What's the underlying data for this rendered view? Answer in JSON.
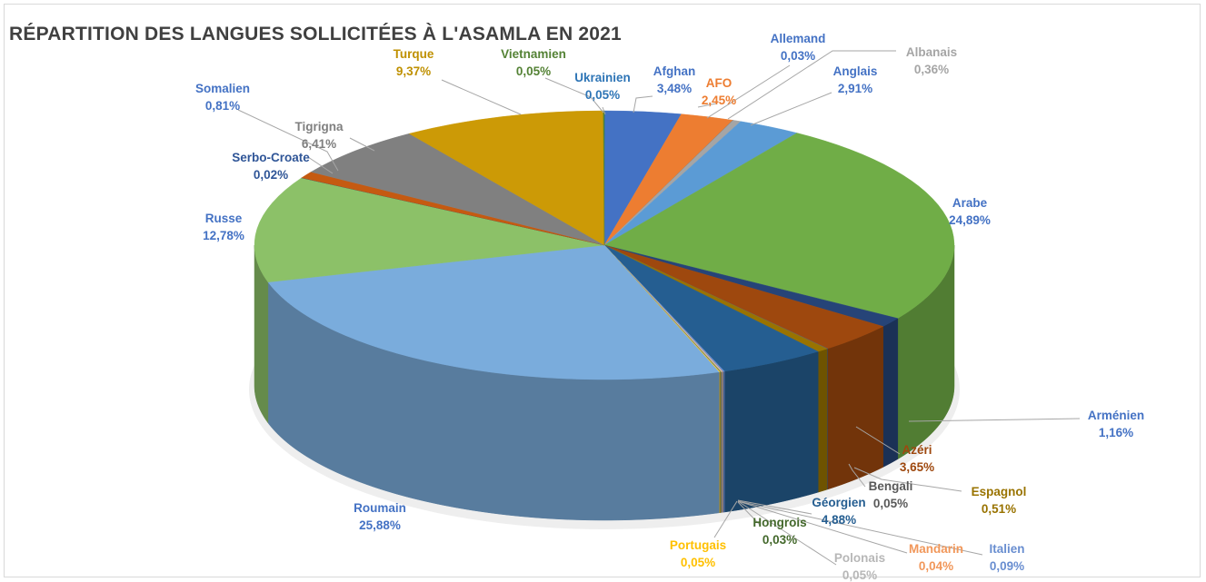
{
  "chart_data": {
    "type": "pie",
    "title": "RÉPARTITION DES LANGUES SOLLICITÉES À L'ASAMLA EN 2021",
    "slices": [
      {
        "name": "Ukrainien",
        "value": 0.05,
        "label": "0,05%",
        "color": "#2e75b6",
        "text_color": "#2e75b6"
      },
      {
        "name": "Afghan",
        "value": 3.48,
        "label": "3,48%",
        "color": "#4472c4",
        "text_color": "#4472c4"
      },
      {
        "name": "AFO",
        "value": 2.45,
        "label": "2,45%",
        "color": "#ed7d31",
        "text_color": "#ed7d31"
      },
      {
        "name": "Allemand",
        "value": 0.03,
        "label": "0,03%",
        "color": "#7f7f7f",
        "text_color": "#4472c4"
      },
      {
        "name": "Albanais",
        "value": 0.36,
        "label": "0,36%",
        "color": "#a5a5a5",
        "text_color": "#a5a5a5"
      },
      {
        "name": "Anglais",
        "value": 2.91,
        "label": "2,91%",
        "color": "#5b9bd5",
        "text_color": "#4472c4"
      },
      {
        "name": "Arabe",
        "value": 24.89,
        "label": "24,89%",
        "color": "#70ad47",
        "text_color": "#4472c4"
      },
      {
        "name": "Arménien",
        "value": 1.16,
        "label": "1,16%",
        "color": "#264478",
        "text_color": "#4472c4"
      },
      {
        "name": "Azéri",
        "value": 3.65,
        "label": "3,65%",
        "color": "#9e480e",
        "text_color": "#9e480e"
      },
      {
        "name": "Bengali",
        "value": 0.05,
        "label": "0,05%",
        "color": "#636363",
        "text_color": "#595959"
      },
      {
        "name": "Espagnol",
        "value": 0.51,
        "label": "0,51%",
        "color": "#997300",
        "text_color": "#997300"
      },
      {
        "name": "Géorgien",
        "value": 4.88,
        "label": "4,88%",
        "color": "#255e91",
        "text_color": "#255e91"
      },
      {
        "name": "Italien",
        "value": 0.09,
        "label": "0,09%",
        "color": "#698ed0",
        "text_color": "#698ed0"
      },
      {
        "name": "Mandarin",
        "value": 0.04,
        "label": "0,04%",
        "color": "#f4b183",
        "text_color": "#f1975a"
      },
      {
        "name": "Polonais",
        "value": 0.05,
        "label": "0,05%",
        "color": "#b7b7b7",
        "text_color": "#b7b7b7"
      },
      {
        "name": "Hongrois",
        "value": 0.03,
        "label": "0,03%",
        "color": "#43682b",
        "text_color": "#43682b"
      },
      {
        "name": "Portugais",
        "value": 0.05,
        "label": "0,05%",
        "color": "#ffcd33",
        "text_color": "#ffc000"
      },
      {
        "name": "Roumain",
        "value": 25.88,
        "label": "25,88%",
        "color": "#7aacdc",
        "text_color": "#4472c4"
      },
      {
        "name": "Russe",
        "value": 12.78,
        "label": "12,78%",
        "color": "#8cc168",
        "text_color": "#4472c4"
      },
      {
        "name": "Serbo-Croate",
        "value": 0.02,
        "label": "0,02%",
        "color": "#1f4e79",
        "text_color": "#2f5597"
      },
      {
        "name": "Somalien",
        "value": 0.81,
        "label": "0,81%",
        "color": "#c55a11",
        "text_color": "#4472c4"
      },
      {
        "name": "Tigrigna",
        "value": 6.41,
        "label": "6,41%",
        "color": "#808080",
        "text_color": "#7f7f7f"
      },
      {
        "name": "Turque",
        "value": 9.37,
        "label": "9,37%",
        "color": "#cc9a06",
        "text_color": "#bf9000"
      },
      {
        "name": "Vietnamien",
        "value": 0.05,
        "label": "0,05%",
        "color": "#548235",
        "text_color": "#548235"
      }
    ],
    "legend": "none",
    "data_labels": "outside, name and percentage"
  }
}
